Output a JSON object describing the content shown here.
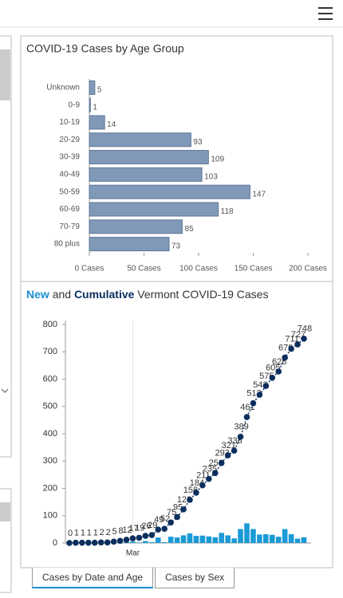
{
  "chart_data": [
    {
      "type": "hbar",
      "title": "COVID-19 Cases by Age Group",
      "categories": [
        "Unknown",
        "0-9",
        "10-19",
        "20-29",
        "30-39",
        "40-49",
        "50-59",
        "60-69",
        "70-79",
        "80 plus"
      ],
      "values": [
        5,
        1,
        14,
        93,
        109,
        103,
        147,
        118,
        85,
        73
      ],
      "color": "#8099b8",
      "xlim": [
        0,
        200
      ],
      "xticks": [
        {
          "value": 0,
          "label": "0 Cases"
        },
        {
          "value": 50,
          "label": "50 Cases"
        },
        {
          "value": 100,
          "label": "100 Cases"
        },
        {
          "value": 150,
          "label": "150 Cases"
        },
        {
          "value": 200,
          "label": "200 Cases"
        }
      ]
    },
    {
      "type": "line-bar",
      "title_parts": [
        {
          "text": "New",
          "color": "#1a8fd0",
          "bold": true
        },
        {
          "text": "and"
        },
        {
          "text": "Cumulative",
          "color": "#0b2e5e",
          "bold": true
        },
        {
          "text": "Vermont COVID-19 Cases"
        }
      ],
      "categories": [
        null,
        null,
        null,
        null,
        null,
        null,
        null,
        null,
        null,
        null,
        "Mar",
        null,
        null,
        null,
        null,
        null,
        null,
        null,
        null,
        null,
        null,
        null,
        null,
        null,
        null,
        null,
        null,
        null,
        null,
        null,
        null,
        null,
        null,
        null,
        null,
        null,
        null,
        null
      ],
      "series": [
        {
          "type": "bar",
          "color": "#1a9ad6",
          "values": [
            0,
            1,
            0,
            0,
            0,
            1,
            0,
            3,
            3,
            4,
            5,
            2,
            7,
            3,
            20,
            3,
            23,
            20,
            28,
            35,
            26,
            27,
            24,
            21,
            37,
            28,
            17,
            51,
            72,
            51,
            31,
            32,
            30,
            23,
            51,
            32,
            16,
            21
          ]
        },
        {
          "type": "line",
          "color": "#0b2e5e",
          "values": [
            0,
            1,
            1,
            1,
            1,
            2,
            2,
            5,
            8,
            12,
            17,
            19,
            26,
            29,
            49,
            52,
            75,
            95,
            123,
            158,
            184,
            211,
            235,
            256,
            293,
            321,
            338,
            389,
            461,
            512,
            543,
            575,
            605,
            628,
            679,
            711,
            727,
            748
          ]
        }
      ],
      "ylim": [
        0,
        800
      ],
      "yticks": [
        0,
        100,
        200,
        300,
        400,
        500,
        600,
        700,
        800
      ],
      "grid": true
    }
  ],
  "tabs": [
    "Cases by Date and Age",
    "Cases by Sex"
  ]
}
